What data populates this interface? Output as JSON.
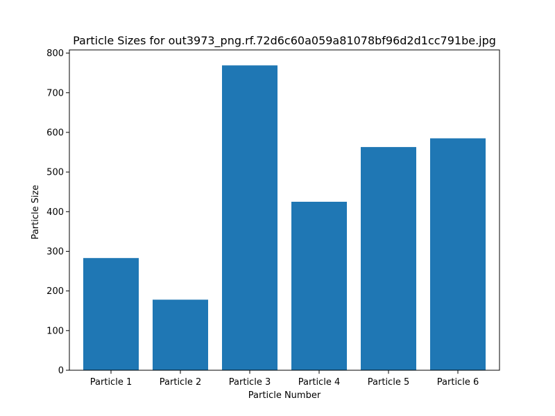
{
  "chart_data": {
    "type": "bar",
    "title": "Particle Sizes for out3973_png.rf.72d6c60a059a81078bf96d2d1cc791be.jpg",
    "xlabel": "Particle Number",
    "ylabel": "Particle Size",
    "categories": [
      "Particle 1",
      "Particle 2",
      "Particle 3",
      "Particle 4",
      "Particle 5",
      "Particle 6"
    ],
    "values": [
      283,
      178,
      769,
      425,
      563,
      585
    ],
    "ylim": [
      0,
      808
    ],
    "yticks": [
      0,
      100,
      200,
      300,
      400,
      500,
      600,
      700,
      800
    ],
    "bar_color": "#1f77b4",
    "grid": false,
    "legend": "none"
  }
}
